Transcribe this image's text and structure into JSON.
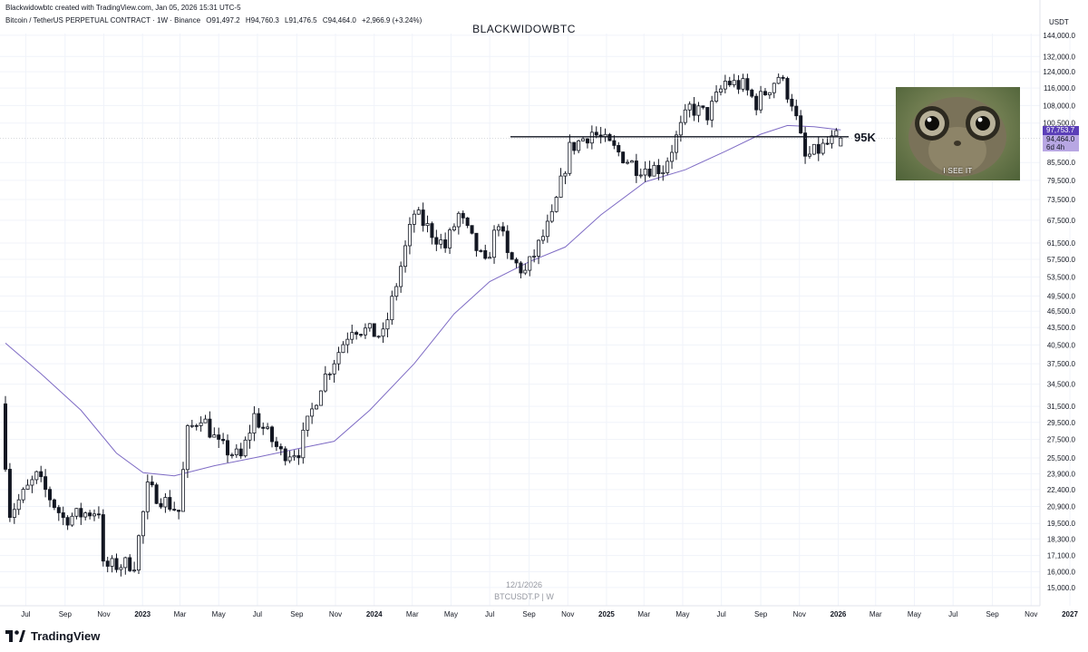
{
  "header": {
    "attribution": "Blackwidowbtc created with TradingView.com, Jan 05, 2026 15:31 UTC-5",
    "symbol": "Bitcoin / TetherUS PERPETUAL CONTRACT · 1W · Binance",
    "open": "O91,497.2",
    "high": "H94,760.3",
    "low": "L91,476.5",
    "close": "C94,464.0",
    "change": "+2,966.9 (+3.24%)",
    "currency": "USDT"
  },
  "chart_title": "BLACKWIDOWBTC",
  "watermark": {
    "date": "12/1/2026",
    "symbol": "BTCUSDT.P | W"
  },
  "logo": "TradingView",
  "annotation": {
    "label": "95K",
    "value": 95000
  },
  "meme": {
    "caption": "I SEE IT"
  },
  "price_labels": {
    "last_ma": "97,753.7",
    "last_price": "94,464.0",
    "countdown": "6d 4h"
  },
  "colors": {
    "up": "#131722",
    "down_fill": "#131722",
    "up_fill": "#ffffff",
    "ma": "#7e6bc4",
    "grid": "#f0f3fa"
  },
  "chart_data": {
    "type": "candlestick",
    "scale": "log",
    "ylim": [
      14500,
      145000
    ],
    "y_ticks": [
      144000,
      132000,
      124000,
      116000,
      108000,
      100500,
      85500,
      79500,
      73500,
      67500,
      61500,
      57500,
      53500,
      49500,
      46500,
      43500,
      40500,
      37500,
      34500,
      31500,
      29500,
      27500,
      25500,
      23900,
      22400,
      20900,
      19500,
      18300,
      17100,
      16000,
      15000
    ],
    "x_ticks": [
      "Jul",
      "Sep",
      "Nov",
      "2023",
      "Mar",
      "May",
      "Jul",
      "Sep",
      "Nov",
      "2024",
      "Mar",
      "May",
      "Jul",
      "Sep",
      "Nov",
      "2025",
      "Mar",
      "May",
      "Jul",
      "Sep",
      "Nov",
      "2026",
      "Mar",
      "May",
      "Jul",
      "Sep",
      "Nov",
      "2027"
    ],
    "horizontal_line": 95000,
    "anchors": [
      [
        "2022-05-30",
        31200
      ],
      [
        "2022-06-13",
        20400
      ],
      [
        "2022-07-25",
        23600
      ],
      [
        "2022-09-05",
        19900
      ],
      [
        "2022-10-31",
        20600
      ],
      [
        "2022-11-07",
        16300
      ],
      [
        "2022-12-26",
        16600
      ],
      [
        "2023-01-16",
        22500
      ],
      [
        "2023-03-06",
        20500
      ],
      [
        "2023-03-20",
        28300
      ],
      [
        "2023-04-10",
        30400
      ],
      [
        "2023-05-08",
        26800
      ],
      [
        "2023-06-12",
        25500
      ],
      [
        "2023-07-03",
        30300
      ],
      [
        "2023-08-14",
        26000
      ],
      [
        "2023-09-11",
        26300
      ],
      [
        "2023-10-16",
        34500
      ],
      [
        "2023-12-04",
        43700
      ],
      [
        "2024-01-22",
        42000
      ],
      [
        "2024-02-12",
        52000
      ],
      [
        "2024-03-11",
        69500
      ],
      [
        "2024-04-29",
        60500
      ],
      [
        "2024-05-20",
        69000
      ],
      [
        "2024-07-01",
        56000
      ],
      [
        "2024-07-22",
        67500
      ],
      [
        "2024-08-05",
        58000
      ],
      [
        "2024-09-02",
        54500
      ],
      [
        "2024-10-14",
        68000
      ],
      [
        "2024-11-11",
        90500
      ],
      [
        "2024-12-16",
        97000
      ],
      [
        "2025-02-24",
        84000
      ],
      [
        "2025-04-07",
        83500
      ],
      [
        "2025-05-19",
        107000
      ],
      [
        "2025-06-16",
        104000
      ],
      [
        "2025-07-14",
        119000
      ],
      [
        "2025-08-11",
        117000
      ],
      [
        "2025-09-01",
        109000
      ],
      [
        "2025-10-06",
        122000
      ],
      [
        "2025-10-27",
        110000
      ],
      [
        "2025-11-17",
        87000
      ],
      [
        "2025-12-08",
        90000
      ],
      [
        "2026-01-05",
        94464
      ]
    ],
    "ma_series": [
      [
        "2022-05-30",
        40800
      ],
      [
        "2022-07-25",
        36000
      ],
      [
        "2022-09-26",
        31000
      ],
      [
        "2022-11-21",
        26000
      ],
      [
        "2023-01-02",
        24000
      ],
      [
        "2023-02-20",
        23700
      ],
      [
        "2023-04-24",
        24700
      ],
      [
        "2023-07-03",
        25600
      ],
      [
        "2023-09-04",
        26500
      ],
      [
        "2023-10-30",
        27300
      ],
      [
        "2023-12-25",
        31000
      ],
      [
        "2024-03-04",
        37500
      ],
      [
        "2024-05-06",
        46000
      ],
      [
        "2024-07-01",
        52500
      ],
      [
        "2024-09-02",
        57000
      ],
      [
        "2024-10-28",
        60500
      ],
      [
        "2024-12-23",
        69000
      ],
      [
        "2025-03-03",
        79000
      ],
      [
        "2025-05-05",
        83000
      ],
      [
        "2025-07-07",
        89500
      ],
      [
        "2025-09-01",
        96000
      ],
      [
        "2025-10-13",
        99500
      ],
      [
        "2025-11-24",
        99000
      ],
      [
        "2026-01-05",
        97753.7
      ]
    ]
  }
}
